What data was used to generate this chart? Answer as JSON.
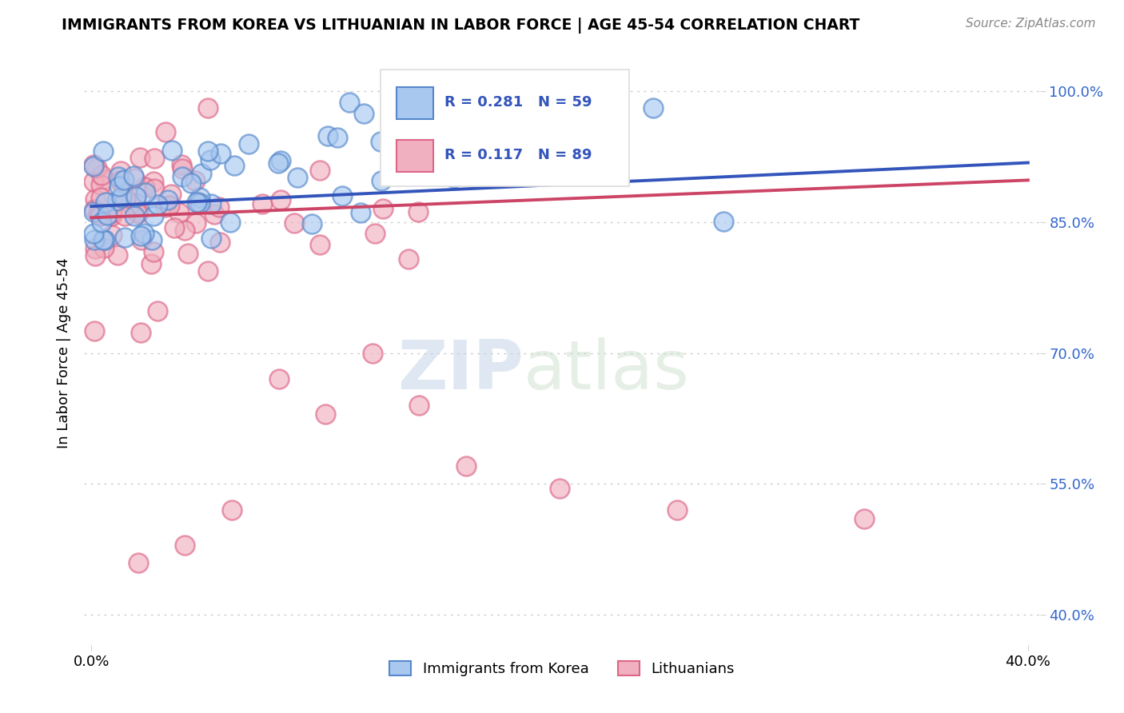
{
  "title": "IMMIGRANTS FROM KOREA VS LITHUANIAN IN LABOR FORCE | AGE 45-54 CORRELATION CHART",
  "source": "Source: ZipAtlas.com",
  "ylabel": "In Labor Force | Age 45-54",
  "ytick_vals": [
    1.0,
    0.85,
    0.7,
    0.55,
    0.4
  ],
  "ytick_labels": [
    "100.0%",
    "85.0%",
    "70.0%",
    "55.0%",
    "40.0%"
  ],
  "xlim": [
    -0.003,
    0.405
  ],
  "ylim": [
    0.365,
    1.035
  ],
  "legend_blue_label": "Immigrants from Korea",
  "legend_pink_label": "Lithuanians",
  "blue_R": "R = 0.281",
  "blue_N": "N = 59",
  "pink_R": "R = 0.117",
  "pink_N": "N = 89",
  "blue_line_x": [
    0.0,
    0.4
  ],
  "blue_line_y": [
    0.868,
    0.918
  ],
  "pink_line_x": [
    0.0,
    0.4
  ],
  "pink_line_y": [
    0.855,
    0.898
  ],
  "blue_face_color": "#a8c8f0",
  "blue_edge_color": "#5588cc",
  "pink_face_color": "#f0b0c0",
  "pink_edge_color": "#dd6688",
  "blue_line_color": "#3355bb",
  "pink_line_color": "#cc4466",
  "watermark_zip": "ZIP",
  "watermark_atlas": "atlas",
  "background_color": "#ffffff"
}
